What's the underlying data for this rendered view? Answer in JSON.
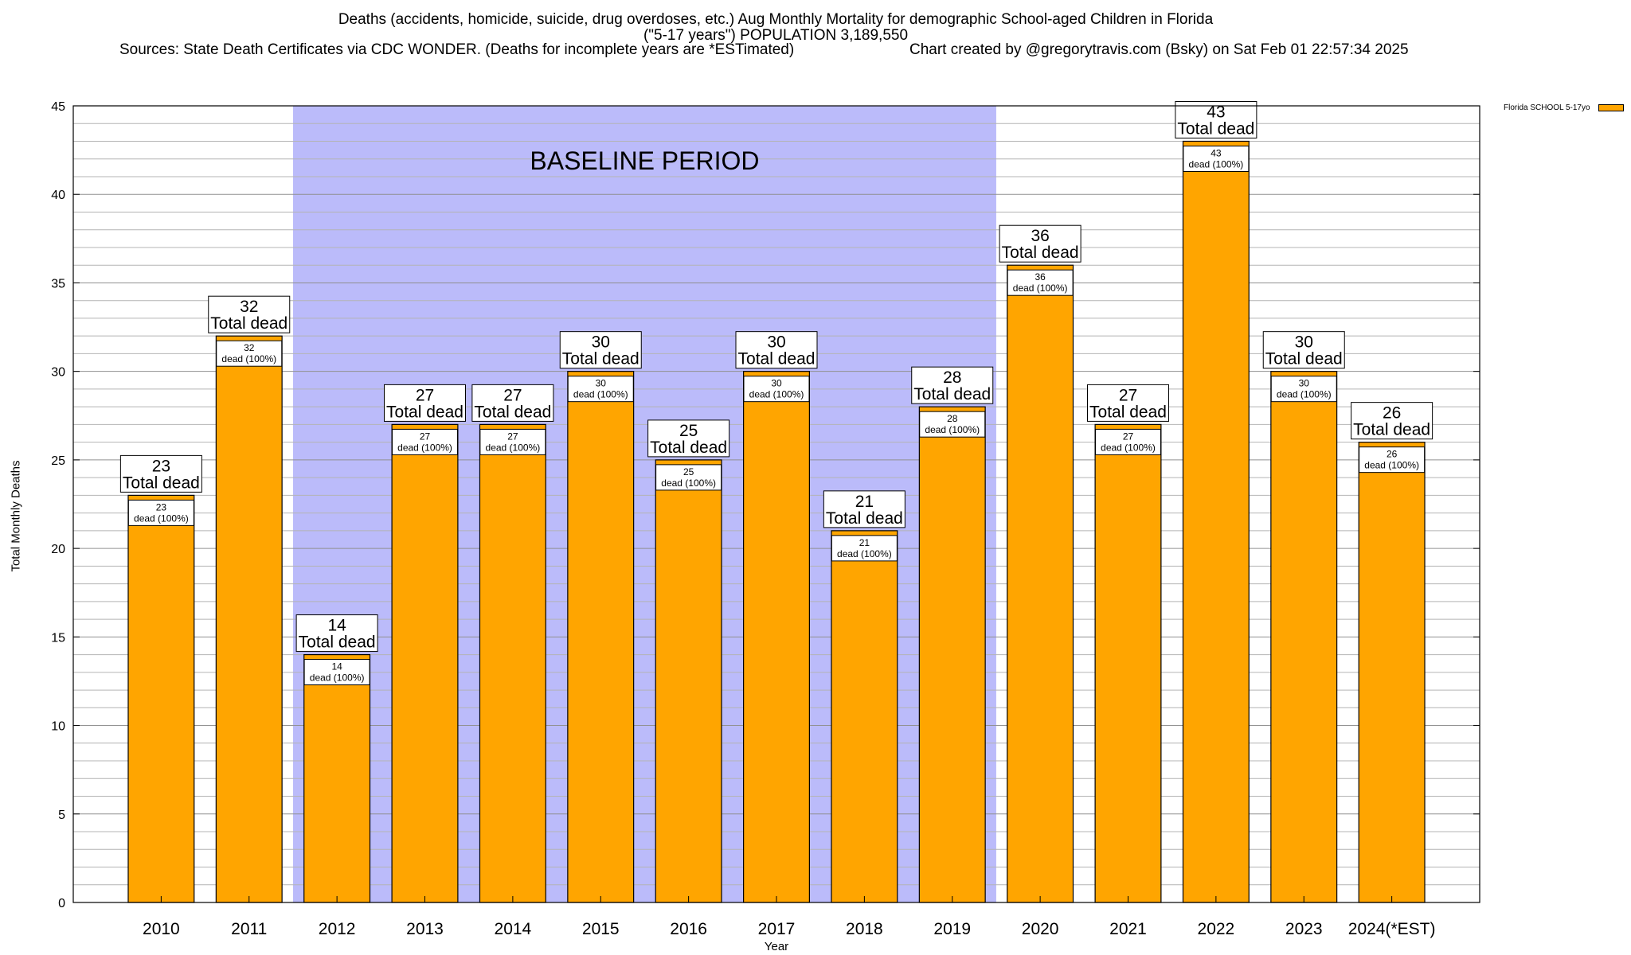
{
  "header": {
    "line1": "Deaths (accidents, homicide, suicide, drug overdoses, etc.) Aug Monthly Mortality for demographic School-aged Children in Florida",
    "line2": "(\"5-17 years\") POPULATION 3,189,550",
    "sources": "Sources: State Death Certificates via CDC WONDER. (Deaths for incomplete years are *ESTimated)",
    "credit": "Chart created by @gregorytravis.com (Bsky) on Sat Feb 01 22:57:34 2025"
  },
  "legend": {
    "label": "Florida SCHOOL 5-17yo",
    "color": "#FFA500"
  },
  "chart_data": {
    "type": "bar",
    "title": "Deaths (accidents, homicide, suicide, drug overdoses, etc.) Aug Monthly Mortality for demographic School-aged Children in Florida",
    "xlabel": "Year",
    "ylabel": "Total Monthly Deaths",
    "ylim": [
      0,
      45
    ],
    "yticks": [
      0,
      5,
      10,
      15,
      20,
      25,
      30,
      35,
      40,
      45
    ],
    "categories": [
      "2010",
      "2011",
      "2012",
      "2013",
      "2014",
      "2015",
      "2016",
      "2017",
      "2018",
      "2019",
      "2020",
      "2021",
      "2022",
      "2023",
      "2024(*EST)"
    ],
    "values": [
      23,
      32,
      14,
      27,
      27,
      30,
      25,
      30,
      21,
      28,
      36,
      27,
      43,
      30,
      26
    ],
    "bar_color": "#FFA500",
    "total_label": "Total dead",
    "inner_label": "dead (100%)",
    "baseline": {
      "label": "BASELINE PERIOD",
      "from": "2012",
      "to": "2019",
      "color": "#BBBBFA"
    }
  }
}
